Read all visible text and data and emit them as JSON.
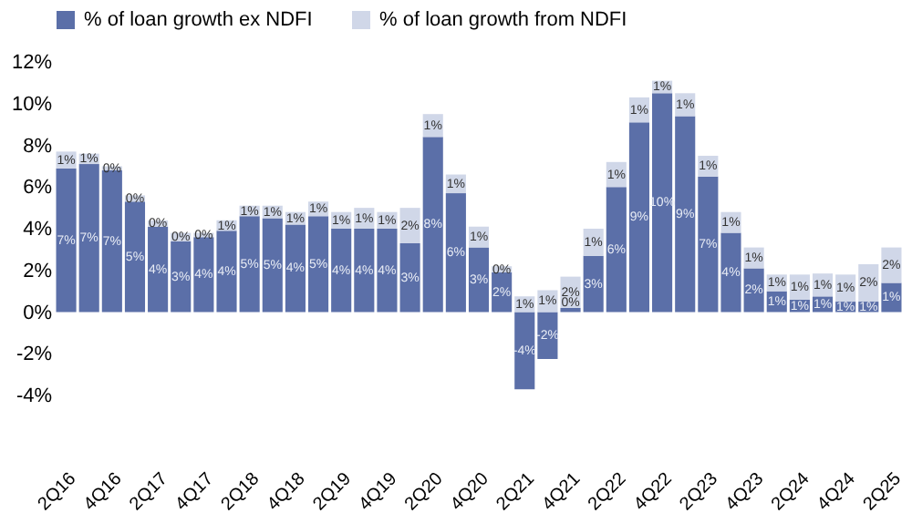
{
  "chart_data": {
    "type": "bar",
    "stacked": true,
    "categories": [
      "2Q16",
      null,
      "4Q16",
      null,
      "2Q17",
      null,
      "4Q17",
      null,
      "2Q18",
      null,
      "4Q18",
      null,
      "2Q19",
      null,
      "4Q19",
      null,
      "2Q20",
      null,
      "4Q20",
      null,
      "2Q21",
      null,
      "4Q21",
      null,
      "2Q22",
      null,
      "4Q22",
      null,
      "2Q23",
      null,
      "4Q23",
      null,
      "2Q24",
      null,
      "4Q24",
      null,
      "2Q25"
    ],
    "series": [
      {
        "name": "% of loan growth ex NDFI",
        "color": "#5b6fa8",
        "values": [
          6.9,
          7.1,
          6.8,
          5.3,
          4.1,
          3.4,
          3.6,
          3.9,
          4.6,
          4.5,
          4.2,
          4.6,
          4.0,
          4.0,
          4.0,
          3.3,
          8.4,
          5.7,
          3.1,
          1.9,
          -3.7,
          -2.25,
          0.2,
          2.7,
          6.0,
          9.1,
          10.5,
          9.4,
          6.5,
          3.8,
          2.1,
          1.0,
          0.6,
          0.75,
          0.5,
          0.5,
          1.4
        ],
        "value_labels": [
          "7%",
          "7%",
          "7%",
          "5%",
          "4%",
          "3%",
          "4%",
          "4%",
          "5%",
          "5%",
          "4%",
          "5%",
          "4%",
          "4%",
          "4%",
          "3%",
          "8%",
          "6%",
          "3%",
          "2%",
          "-4%",
          "-2%",
          "0%",
          "3%",
          "6%",
          "9%",
          "10%",
          "9%",
          "7%",
          "4%",
          "2%",
          "1%",
          "1%",
          "1%",
          "1%",
          "1%",
          "1%"
        ]
      },
      {
        "name": "% of loan growth from NDFI",
        "color": "#d0d7e8",
        "values": [
          0.8,
          0.5,
          0.2,
          0.3,
          0.3,
          0.4,
          0.2,
          0.5,
          0.5,
          0.6,
          0.6,
          0.7,
          0.8,
          1.0,
          0.8,
          1.7,
          1.1,
          0.9,
          1.0,
          0.3,
          0.75,
          1.05,
          1.5,
          1.3,
          1.2,
          1.2,
          0.6,
          1.1,
          1.0,
          1.0,
          1.0,
          0.8,
          1.2,
          1.1,
          1.3,
          1.8,
          1.7
        ],
        "value_labels": [
          "1%",
          "1%",
          "0%",
          "0%",
          "0%",
          "0%",
          "0%",
          "1%",
          "1%",
          "1%",
          "1%",
          "1%",
          "1%",
          "1%",
          "1%",
          "2%",
          "1%",
          "1%",
          "1%",
          "0%",
          "1%",
          "1%",
          "2%",
          "1%",
          "1%",
          "1%",
          "1%",
          "1%",
          "1%",
          "1%",
          "1%",
          "1%",
          "1%",
          "1%",
          "1%",
          "2%",
          "2%"
        ]
      }
    ],
    "ylim": [
      -4,
      12
    ],
    "yticks": [
      {
        "value": -4,
        "label": "-4%"
      },
      {
        "value": -2,
        "label": "-2%"
      },
      {
        "value": 0,
        "label": "0%"
      },
      {
        "value": 2,
        "label": "2%"
      },
      {
        "value": 4,
        "label": "4%"
      },
      {
        "value": 6,
        "label": "6%"
      },
      {
        "value": 8,
        "label": "8%"
      },
      {
        "value": 10,
        "label": "10%"
      },
      {
        "value": 12,
        "label": "12%"
      }
    ],
    "grid": false,
    "legend": "top"
  }
}
